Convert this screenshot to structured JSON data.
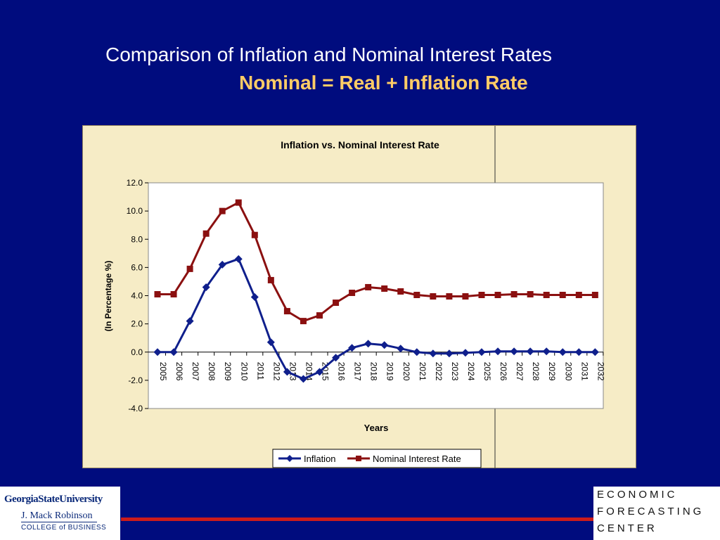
{
  "slide": {
    "title": "Comparison of Inflation and Nominal Interest Rates",
    "subtitle": "Nominal = Real + Inflation Rate"
  },
  "logos": {
    "gsu": {
      "name": "GeorgiaStateUniversity",
      "school": "J. Mack Robinson",
      "college": "COLLEGE of BUSINESS"
    },
    "efc": [
      "ECONOMIC",
      "FORECASTING",
      "CENTER"
    ]
  },
  "colors": {
    "background": "#000c7e",
    "subtitle": "#ffcc66",
    "inflation": "#0f1f8c",
    "nominal": "#8b1010",
    "footer_line": "#cc1b1b"
  },
  "chart_data": {
    "type": "line",
    "title": "Inflation vs. Nominal Interest Rate",
    "xlabel": "Years",
    "ylabel": "(In Percentage %)",
    "ylim": [
      -4.0,
      12.0
    ],
    "yticks": [
      "12.0",
      "10.0",
      "8.0",
      "6.0",
      "4.0",
      "2.0",
      "0.0",
      "-2.0",
      "-4.0"
    ],
    "grid": false,
    "legend": "bottom",
    "categories": [
      "2005",
      "2006",
      "2007",
      "2008",
      "2009",
      "2010",
      "2011",
      "2012",
      "2013",
      "2014",
      "2015",
      "2016",
      "2017",
      "2018",
      "2019",
      "2020",
      "2021",
      "2022",
      "2023",
      "2024",
      "2025",
      "2026",
      "2027",
      "2028",
      "2029",
      "2030",
      "2031",
      "2032"
    ],
    "series": [
      {
        "name": "Inflation",
        "marker": "diamond",
        "values": [
          0.0,
          0.0,
          2.2,
          4.6,
          6.2,
          6.6,
          3.9,
          0.7,
          -1.4,
          -1.9,
          -1.4,
          -0.4,
          0.3,
          0.6,
          0.5,
          0.25,
          0.0,
          -0.1,
          -0.1,
          -0.05,
          0.0,
          0.05,
          0.05,
          0.05,
          0.05,
          0.0,
          0.0,
          0.0
        ]
      },
      {
        "name": "Nominal Interest Rate",
        "marker": "square",
        "values": [
          4.1,
          4.1,
          5.9,
          8.4,
          10.0,
          10.6,
          8.3,
          5.1,
          2.9,
          2.2,
          2.6,
          3.5,
          4.2,
          4.6,
          4.5,
          4.3,
          4.05,
          3.95,
          3.95,
          3.95,
          4.05,
          4.05,
          4.1,
          4.1,
          4.05,
          4.05,
          4.05,
          4.05
        ]
      }
    ]
  }
}
